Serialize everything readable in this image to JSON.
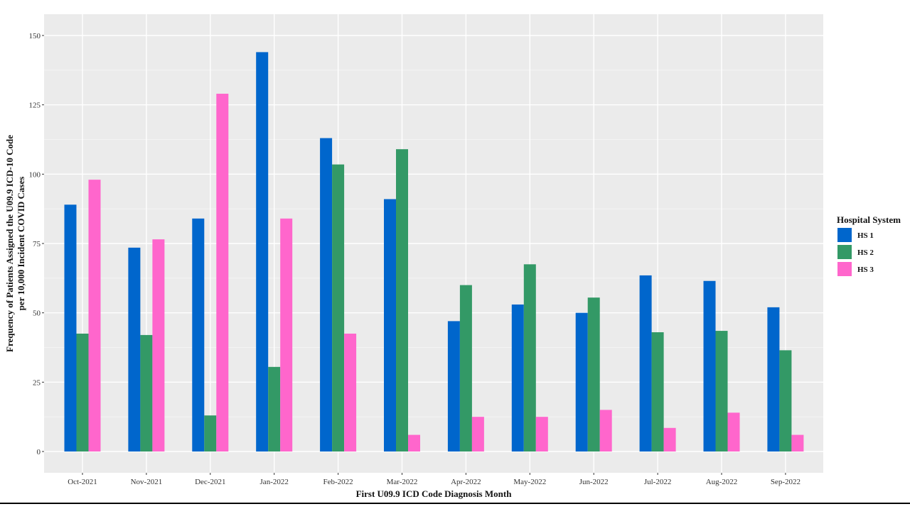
{
  "chart_data": {
    "type": "bar",
    "xlabel": "First U09.9 ICD Code Diagnosis Month",
    "ylabel_lines": [
      "Frequency of Patients Assigned the U09.9 ICD-10 Code",
      "per 10,000 Incident COVID Cases"
    ],
    "ylim": [
      0,
      150
    ],
    "yticks": [
      0,
      25,
      50,
      75,
      100,
      125,
      150
    ],
    "grid": true,
    "legend_title": "Hospital System",
    "legend_position": "right",
    "categories": [
      "Oct-2021",
      "Nov-2021",
      "Dec-2021",
      "Jan-2022",
      "Feb-2022",
      "Mar-2022",
      "Apr-2022",
      "May-2022",
      "Jun-2022",
      "Jul-2022",
      "Aug-2022",
      "Sep-2022"
    ],
    "series": [
      {
        "name": "HS 1",
        "color": "#0066cc",
        "values": [
          89,
          73.5,
          84,
          144,
          113,
          91,
          47,
          53,
          50,
          63.5,
          61.5,
          52
        ]
      },
      {
        "name": "HS 2",
        "color": "#339966",
        "values": [
          42.5,
          42,
          13,
          30.5,
          103.5,
          109,
          60,
          67.5,
          55.5,
          43,
          43.5,
          36.5
        ]
      },
      {
        "name": "HS 3",
        "color": "#ff66cc",
        "values": [
          98,
          76.5,
          129,
          84,
          42.5,
          6,
          12.5,
          12.5,
          15,
          8.5,
          14,
          6
        ]
      }
    ]
  }
}
